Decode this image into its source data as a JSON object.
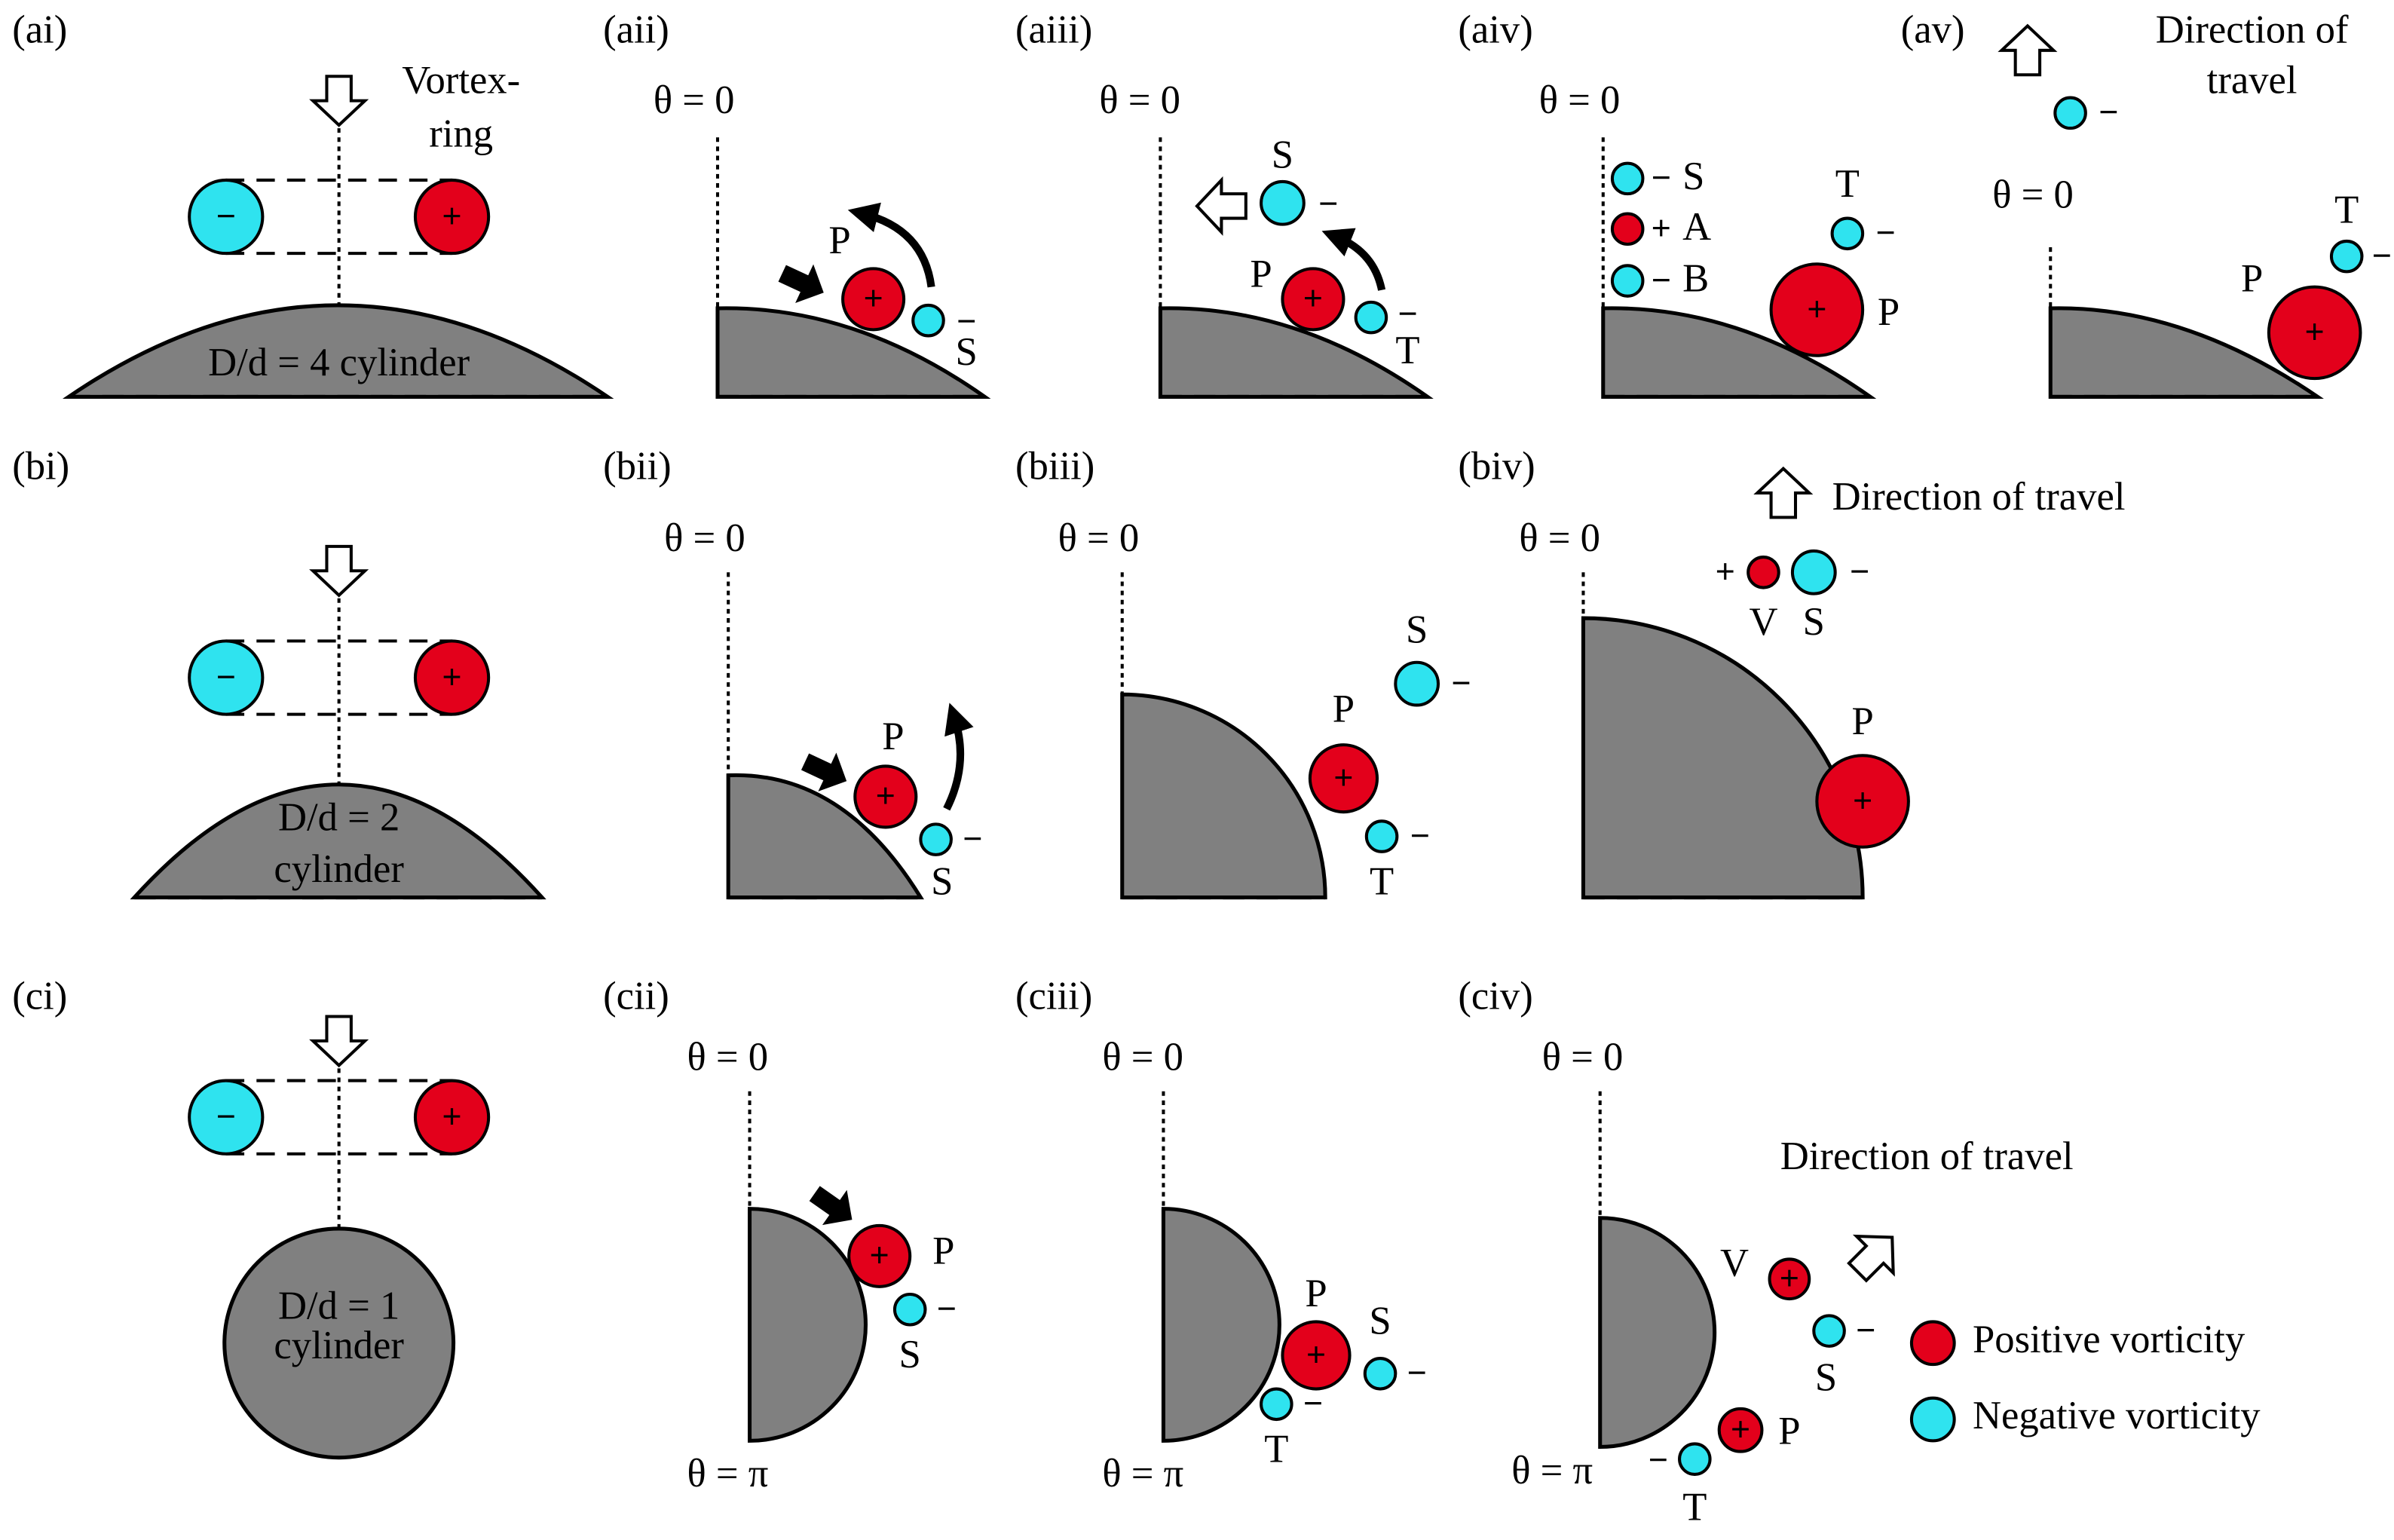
{
  "panels": {
    "ai": "(ai)",
    "aii": "(aii)",
    "aiii": "(aiii)",
    "aiv": "(aiv)",
    "av": "(av)",
    "bi": "(bi)",
    "bii": "(bii)",
    "biii": "(biii)",
    "biv": "(biv)",
    "ci": "(ci)",
    "cii": "(cii)",
    "ciii": "(ciii)",
    "civ": "(civ)"
  },
  "theta_zero": "θ = 0",
  "theta_pi": "θ = π",
  "vortex_ring": [
    "Vortex-",
    "ring"
  ],
  "cylinders": {
    "a": "D/d = 4 cylinder",
    "b": [
      "D/d = 2",
      "cylinder"
    ],
    "c": [
      "D/d = 1",
      "cylinder"
    ]
  },
  "direction": {
    "av": [
      "Direction of",
      "travel"
    ],
    "biv": "Direction of travel",
    "civ": "Direction of travel"
  },
  "legend": {
    "positive": "Positive vorticity",
    "negative": "Negative vorticity"
  },
  "signs": {
    "positive": "+",
    "negative": "−"
  },
  "vortices": {
    "P": "P",
    "S": "S",
    "T": "T",
    "A": "A",
    "B": "B",
    "V": "V"
  }
}
